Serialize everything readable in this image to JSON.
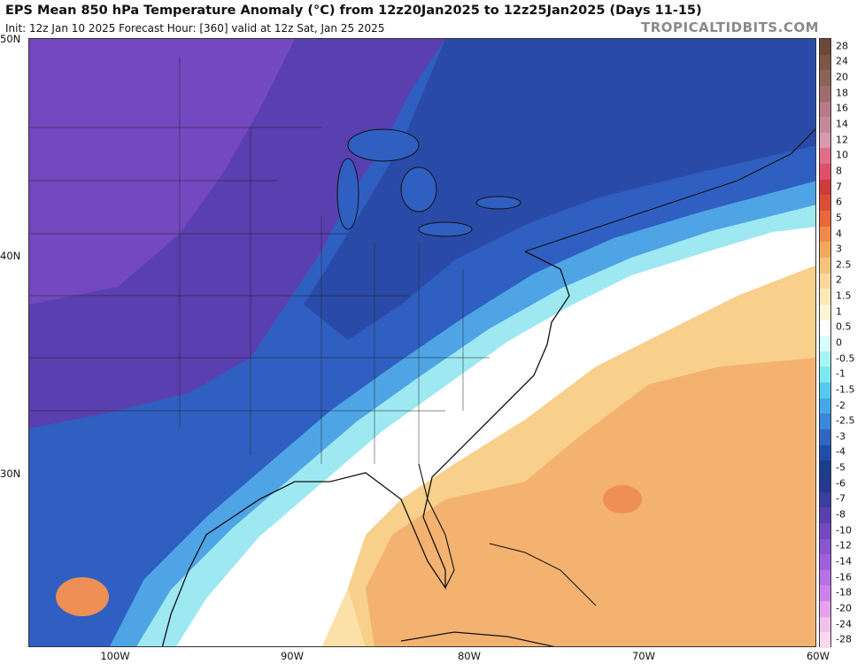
{
  "header": {
    "title": "EPS Mean 850 hPa Temperature Anomaly (°C) from 12z20Jan2025 to 12z25Jan2025 (Days 11-15)",
    "subtitle": "Init: 12z Jan 10 2025   Forecast Hour: [360]   valid at 12z Sat, Jan 25 2025",
    "watermark": "TROPICALTIDBITS.COM"
  },
  "axes": {
    "lat_labels": [
      "50N",
      "40N",
      "30N"
    ],
    "lon_labels": [
      "100W",
      "90W",
      "80W",
      "70W",
      "60W"
    ]
  },
  "colorbar": {
    "labels": [
      "28",
      "24",
      "20",
      "18",
      "16",
      "14",
      "12",
      "10",
      "8",
      "7",
      "6",
      "5",
      "4",
      "3",
      "2.5",
      "2",
      "1.5",
      "1",
      "0.5",
      "0",
      "-0.5",
      "-1",
      "-1.5",
      "-2",
      "-2.5",
      "-3",
      "-4",
      "-5",
      "-6",
      "-7",
      "-8",
      "-10",
      "-12",
      "-14",
      "-16",
      "-18",
      "-20",
      "-24",
      "-28"
    ],
    "colors": [
      "#6b4a38",
      "#7d5647",
      "#8d6257",
      "#a06c6c",
      "#b87a86",
      "#c8879a",
      "#d898ad",
      "#e06e8a",
      "#e04f6a",
      "#cf3a3a",
      "#db4e36",
      "#e8673c",
      "#f08a4a",
      "#f4a85e",
      "#f7c27b",
      "#f9d89a",
      "#fbe8b6",
      "#fcf5d5",
      "#ffffff",
      "#d8fbfb",
      "#a8f4f4",
      "#7ee8f0",
      "#56c9ee",
      "#45a8e6",
      "#3a86d8",
      "#2f66c4",
      "#1f4ea8",
      "#1a3d8e",
      "#243a8c",
      "#3a3e9e",
      "#5a3fb0",
      "#7448c0",
      "#8a55d0",
      "#a060de",
      "#b870e8",
      "#d080ec",
      "#e6a0ee",
      "#f0c0ee",
      "#f8d8f0"
    ]
  },
  "map": {
    "region": "Eastern United States and western Atlantic"
  }
}
